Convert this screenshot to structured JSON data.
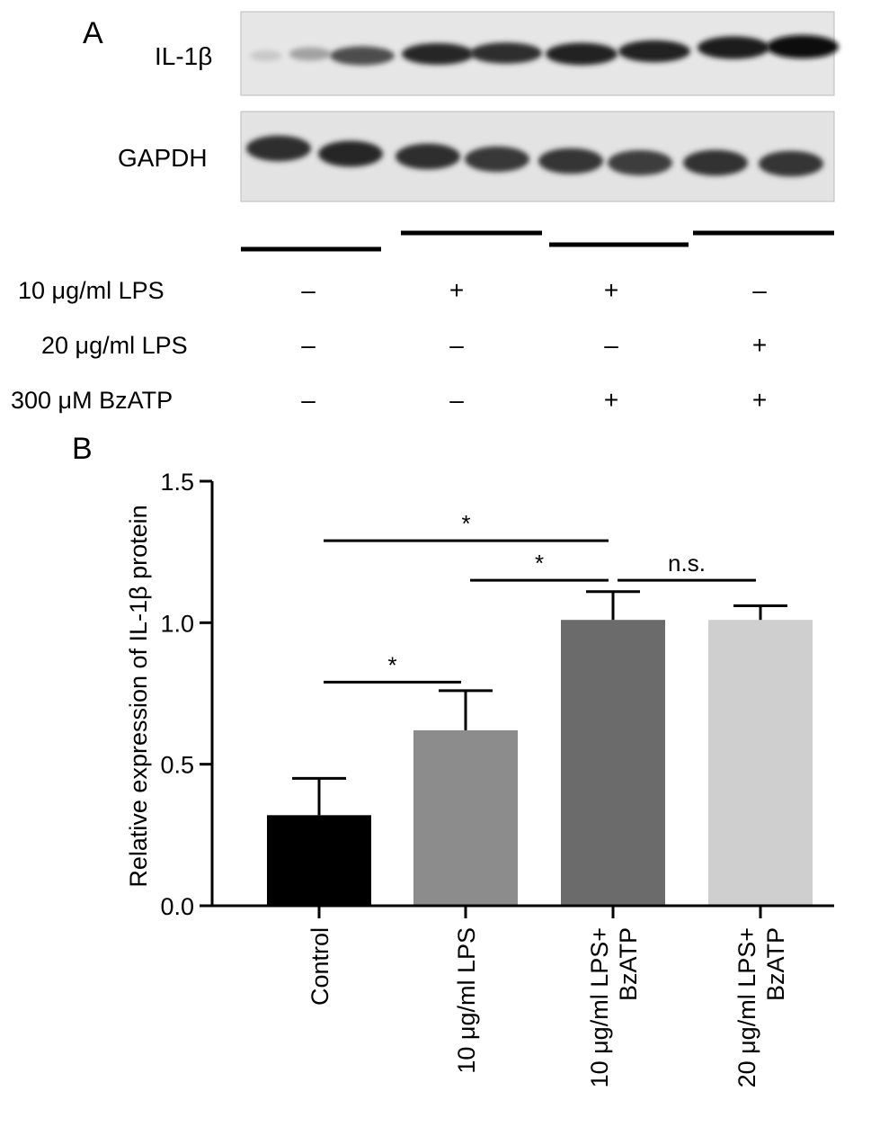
{
  "panel_a": {
    "letter": "A",
    "blots": [
      {
        "label": "IL-1β",
        "intensities": [
          0.12,
          0.3,
          0.7,
          0.88,
          0.85,
          0.92,
          0.9,
          0.95,
          1.0
        ]
      },
      {
        "label": "GAPDH",
        "intensities": [
          0.85,
          0.88,
          0.85,
          0.8,
          0.82,
          0.78,
          0.84,
          0.82
        ]
      }
    ],
    "conditions": [
      {
        "label": "10 μg/ml LPS",
        "values": [
          "–",
          "+",
          "+",
          "–"
        ]
      },
      {
        "label": "20 μg/ml LPS",
        "values": [
          "–",
          "–",
          "–",
          "+"
        ]
      },
      {
        "label": "300 μM BzATP",
        "values": [
          "–",
          "–",
          "+",
          "+"
        ]
      }
    ]
  },
  "panel_b": {
    "letter": "B"
  },
  "chart_data": {
    "type": "bar",
    "categories": [
      "Control",
      "10 μg/ml LPS",
      "10 μg/ml LPS+ BzATP",
      "20 μg/ml LPS+ BzATP"
    ],
    "category_lines": [
      [
        "Control"
      ],
      [
        "10 μg/ml LPS"
      ],
      [
        "10 μg/ml LPS+",
        "BzATP"
      ],
      [
        "20 μg/ml LPS+",
        "BzATP"
      ]
    ],
    "values": [
      0.32,
      0.62,
      1.01,
      1.01
    ],
    "errors": [
      0.13,
      0.14,
      0.1,
      0.05
    ],
    "colors": [
      "#000000",
      "#8c8c8c",
      "#6b6b6b",
      "#cfcfcf"
    ],
    "ylabel": "Relative expression of IL-1β protein",
    "xlabel": "",
    "ylim": [
      0,
      1.5
    ],
    "yticks": [
      "0.0",
      "0.5",
      "1.0",
      "1.5"
    ],
    "ytick_values": [
      0,
      0.5,
      1.0,
      1.5
    ],
    "annotations": [
      {
        "from": 0,
        "to": 2,
        "text": "*",
        "level": 1.29
      },
      {
        "from": 1,
        "to": 2,
        "text": "*",
        "level": 1.15
      },
      {
        "from": 2,
        "to": 3,
        "text": "n.s.",
        "level": 1.15
      },
      {
        "from": 0,
        "to": 1,
        "text": "*",
        "level": 0.79
      }
    ]
  }
}
